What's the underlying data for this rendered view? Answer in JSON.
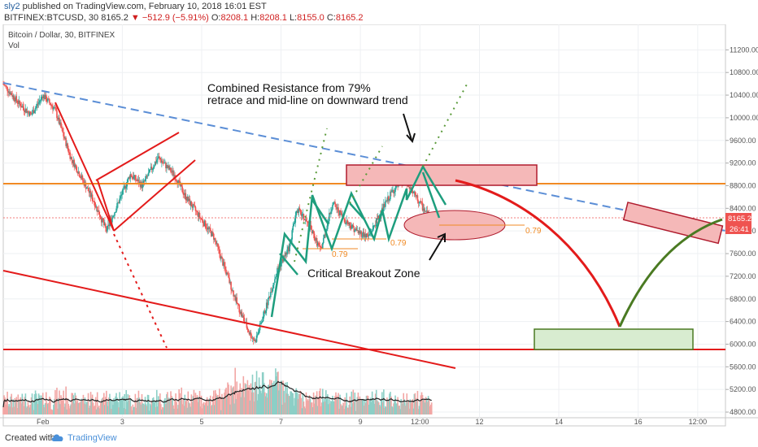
{
  "header": {
    "author": "sly2",
    "published": "published on TradingView.com, February 10, 2018 16:01 EST",
    "symbol": "BITFINEX:BTCUSD, 30",
    "last": "8165.2",
    "change": "▼ −512.9 (−5.91%)",
    "o_label": "O:",
    "o_value": "8208.1",
    "h_label": "H:",
    "h_value": "8208.1",
    "l_label": "L:",
    "l_value": "8155.0",
    "c_label": "C:",
    "c_value": "8165.2"
  },
  "legend": {
    "title": "Bitcoin / Dollar, 30, BITFINEX",
    "vol": "Vol"
  },
  "annotations": {
    "resistance_line1": "Combined Resistance from 79%",
    "resistance_line2": "retrace and mid-line on downward trend",
    "breakout": "Critical Breakout Zone",
    "fib1": "0.79",
    "fib2": "0.79",
    "fib3": "0.79"
  },
  "price_labels": {
    "last": "8165.2",
    "countdown": "26:41"
  },
  "footer": {
    "created": "Created with",
    "brand": "TradingView"
  },
  "colors": {
    "up": "#26a69a",
    "down": "#ef5350",
    "red_line": "#e31b1b",
    "orange": "#f08a24",
    "teal_pattern": "#1e9e7e",
    "dashed_blue": "#5b8ed6",
    "green_dotted": "#5a9a3a",
    "green_curve": "#4a7a22",
    "red_box_fill": "#f5b8b8",
    "green_box_fill": "#d8ecd0"
  },
  "chart_data": {
    "type": "candlestick",
    "symbol": "BITFINEX:BTCUSD",
    "interval": "30",
    "y_axis": {
      "ticks": [
        4800,
        5200,
        5600,
        6000,
        6400,
        6800,
        7200,
        7600,
        8000,
        8400,
        8800,
        9200,
        9600,
        10000,
        10400,
        10800,
        11200
      ],
      "ylim": [
        4700,
        11650
      ]
    },
    "x_axis": {
      "ticks": [
        "Feb",
        "3",
        "5",
        "7",
        "9",
        "12:00",
        "12",
        "14",
        "16",
        "12:00"
      ],
      "tick_days": [
        1,
        3,
        5,
        7,
        9,
        10.5,
        12,
        14,
        16,
        17.5
      ],
      "xlim": [
        0,
        18.2
      ]
    },
    "price_path": [
      [
        0.0,
        10600
      ],
      [
        0.4,
        10250
      ],
      [
        0.7,
        10050
      ],
      [
        1.0,
        10400
      ],
      [
        1.3,
        10150
      ],
      [
        1.7,
        9300
      ],
      [
        2.3,
        8500
      ],
      [
        2.6,
        8000
      ],
      [
        2.9,
        8500
      ],
      [
        3.2,
        9000
      ],
      [
        3.5,
        8800
      ],
      [
        3.9,
        9300
      ],
      [
        4.3,
        9000
      ],
      [
        4.6,
        8600
      ],
      [
        4.9,
        8300
      ],
      [
        5.3,
        7900
      ],
      [
        5.6,
        7300
      ],
      [
        5.9,
        6700
      ],
      [
        6.2,
        6200
      ],
      [
        6.35,
        6050
      ],
      [
        6.6,
        6600
      ],
      [
        6.9,
        7300
      ],
      [
        7.2,
        7700
      ],
      [
        7.4,
        8400
      ],
      [
        7.7,
        8100
      ],
      [
        8.0,
        7650
      ],
      [
        8.3,
        8500
      ],
      [
        8.6,
        8200
      ],
      [
        8.9,
        8000
      ],
      [
        9.2,
        7900
      ],
      [
        9.5,
        8300
      ],
      [
        9.8,
        8700
      ],
      [
        10.1,
        8900
      ],
      [
        10.35,
        8650
      ],
      [
        10.6,
        8380
      ],
      [
        10.8,
        8165
      ]
    ],
    "levels": {
      "red_horizontal": 5850,
      "orange_horizontal": 8780,
      "last_price": 8165.2
    },
    "volume_panel": {
      "series": [
        {
          "name": "Vol"
        }
      ]
    }
  }
}
